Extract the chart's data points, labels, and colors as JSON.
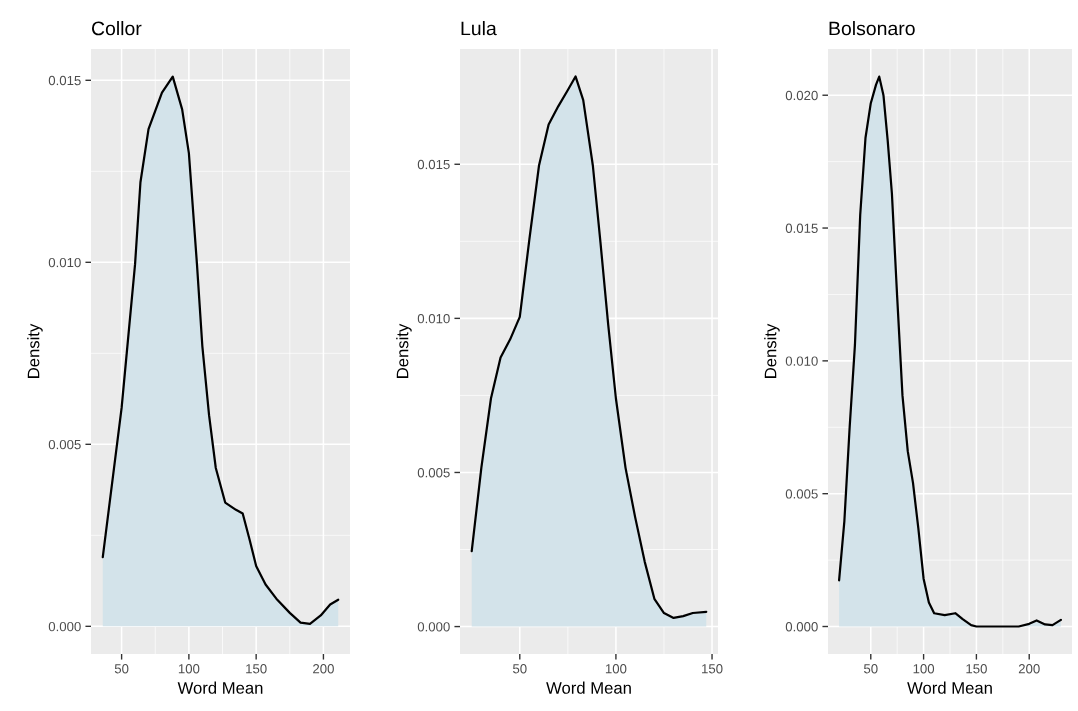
{
  "chart_data": [
    {
      "type": "area",
      "title": "Collor",
      "xlabel": "Word Mean",
      "ylabel": "Density",
      "grid": true,
      "x": [
        36,
        50,
        60,
        64,
        70,
        80,
        88,
        95,
        100,
        106,
        110,
        115,
        120,
        127,
        135,
        140,
        145,
        150,
        157,
        165,
        175,
        183,
        190,
        198,
        205,
        211
      ],
      "series": [
        {
          "color": "#d3e3ea",
          "values": [
            0.0019,
            0.006,
            0.00995,
            0.0122,
            0.01366,
            0.01466,
            0.0151,
            0.0142,
            0.013,
            0.00995,
            0.0077,
            0.0058,
            0.00435,
            0.0034,
            0.0032,
            0.0031,
            0.0024,
            0.00166,
            0.00115,
            0.00076,
            0.00037,
            0.0001,
            7e-05,
            0.0003,
            0.0006,
            0.00073
          ]
        }
      ],
      "xlim": [
        27.25,
        219.75
      ],
      "ylim": [
        -0.00076,
        0.01586
      ],
      "xticks": [
        50,
        100,
        150,
        200
      ],
      "yticks": [
        {
          "value": 0,
          "label": "0.000"
        },
        {
          "value": 0.005,
          "label": "0.005"
        },
        {
          "value": 0.01,
          "label": "0.010"
        },
        {
          "value": 0.015,
          "label": "0.015"
        }
      ]
    },
    {
      "type": "area",
      "title": "Lula",
      "xlabel": "Word Mean",
      "ylabel": "Density",
      "grid": true,
      "x": [
        25,
        30,
        35,
        40,
        45,
        50,
        55,
        60,
        65,
        70,
        75,
        79,
        83,
        88,
        92,
        96,
        100,
        105,
        110,
        115,
        120,
        125,
        130,
        135,
        140,
        147
      ],
      "series": [
        {
          "color": "#d3e3ea",
          "values": [
            0.00245,
            0.00515,
            0.0074,
            0.00873,
            0.00932,
            0.01005,
            0.01257,
            0.01496,
            0.01629,
            0.01688,
            0.01741,
            0.01785,
            0.01708,
            0.01496,
            0.01244,
            0.00979,
            0.0074,
            0.00515,
            0.00355,
            0.0021,
            0.0009,
            0.00044,
            0.00028,
            0.00034,
            0.00044,
            0.00048
          ]
        }
      ],
      "xlim": [
        18.9,
        153.1
      ],
      "ylim": [
        -0.00089,
        0.01874
      ],
      "xticks": [
        50,
        100,
        150
      ],
      "yticks": [
        {
          "value": 0,
          "label": "0.000"
        },
        {
          "value": 0.005,
          "label": "0.005"
        },
        {
          "value": 0.01,
          "label": "0.010"
        },
        {
          "value": 0.015,
          "label": "0.015"
        }
      ]
    },
    {
      "type": "area",
      "title": "Bolsonaro",
      "xlabel": "Word Mean",
      "ylabel": "Density",
      "grid": true,
      "x": [
        20,
        25,
        30,
        35,
        40,
        45,
        50,
        55,
        58,
        62,
        66,
        70,
        75,
        80,
        85,
        90,
        95,
        100,
        105,
        110,
        120,
        130,
        137,
        145,
        150,
        190,
        200,
        207,
        215,
        222,
        230
      ],
      "series": [
        {
          "color": "#d3e3ea",
          "values": [
            0.00174,
            0.00397,
            0.0075,
            0.0106,
            0.0155,
            0.0184,
            0.0197,
            0.0204,
            0.0207,
            0.02,
            0.0183,
            0.0163,
            0.0124,
            0.0087,
            0.0066,
            0.0054,
            0.0037,
            0.0018,
            0.0009,
            0.0005,
            0.00043,
            0.0005,
            0.00028,
            5e-05,
            0,
            0,
            0.0001,
            0.00023,
            8e-05,
            5e-05,
            0.00025
          ]
        }
      ],
      "xlim": [
        9.5,
        240.5
      ],
      "ylim": [
        -0.001035,
        0.02174
      ],
      "xticks": [
        50,
        100,
        150,
        200
      ],
      "yticks": [
        {
          "value": 0,
          "label": "0.000"
        },
        {
          "value": 0.005,
          "label": "0.005"
        },
        {
          "value": 0.01,
          "label": "0.010"
        },
        {
          "value": 0.015,
          "label": "0.015"
        },
        {
          "value": 0.02,
          "label": "0.020"
        }
      ]
    }
  ]
}
